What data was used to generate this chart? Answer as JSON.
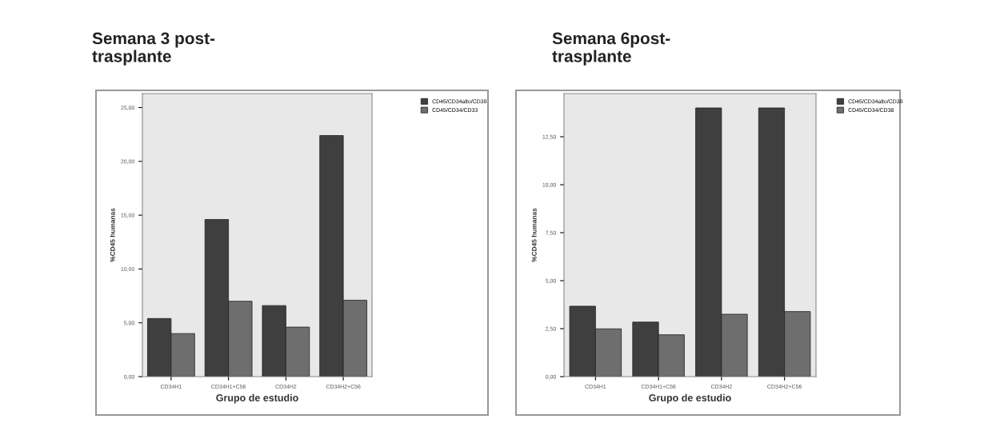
{
  "chart_data": [
    {
      "type": "bar",
      "title": "Semana 3 post-\ntrasplante",
      "xlabel": "Grupo de estudio",
      "ylabel": "%CD45 humanas",
      "categories": [
        "CD34H1",
        "CD34H1+C56",
        "CD34H2",
        "CD34H2+C56"
      ],
      "series": [
        {
          "name": "CD45/CD34alto/CD38",
          "color": "#3f3f3f",
          "values": [
            5.4,
            14.6,
            6.6,
            22.4
          ]
        },
        {
          "name": "CD45/CD34/CD33",
          "color": "#6e6e6e",
          "values": [
            4.0,
            7.0,
            4.6,
            7.1
          ]
        }
      ],
      "ylim": [
        0,
        26.3
      ],
      "yticks": [
        {
          "value": 0,
          "label": "0,00"
        },
        {
          "value": 5,
          "label": "5,00"
        },
        {
          "value": 10,
          "label": "10,00"
        },
        {
          "value": 15,
          "label": "15,00"
        },
        {
          "value": 20,
          "label": "20,00"
        },
        {
          "value": 25,
          "label": "25,00"
        }
      ],
      "legend": "top right",
      "grid": false
    },
    {
      "type": "bar",
      "title": "Semana 6post-\ntrasplante",
      "xlabel": "Grupo de estudio",
      "ylabel": "%CD45 humanas",
      "categories": [
        "CD34H1",
        "CD34H1+C56",
        "CD34H2",
        "CD34H2+C56"
      ],
      "series": [
        {
          "name": "CD45/CD34alto/CD38",
          "color": "#3f3f3f",
          "values": [
            3.67,
            2.84,
            14.0,
            14.0
          ]
        },
        {
          "name": "CD45/CD34/CD38",
          "color": "#6e6e6e",
          "values": [
            2.49,
            2.18,
            3.25,
            3.39
          ]
        }
      ],
      "ylim": [
        0,
        14.75
      ],
      "yticks": [
        {
          "value": 0,
          "label": "0,00"
        },
        {
          "value": 2.5,
          "label": "2,50"
        },
        {
          "value": 5,
          "label": "5,00"
        },
        {
          "value": 7.5,
          "label": "7,50"
        },
        {
          "value": 10,
          "label": "10,00"
        },
        {
          "value": 12.5,
          "label": "12,50"
        }
      ],
      "legend": "top right",
      "grid": false
    }
  ]
}
